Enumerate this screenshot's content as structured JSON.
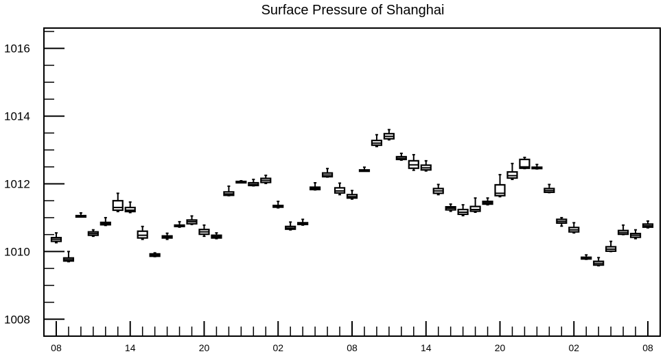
{
  "chart_data": {
    "type": "box",
    "title": "Surface Pressure of Shanghai",
    "xlabel": "",
    "ylabel": "",
    "ylim": [
      1007.5,
      1016.6
    ],
    "y_major_ticks": [
      1008,
      1010,
      1012,
      1014,
      1016
    ],
    "y_tick_labels": [
      "1008",
      "1010",
      "1012",
      "1014",
      "1016"
    ],
    "x_tick_hours": [
      0,
      6,
      12,
      18,
      24,
      30,
      36,
      42,
      48
    ],
    "x_tick_labels": [
      "08",
      "14",
      "20",
      "02",
      "08",
      "14",
      "20",
      "02",
      "08"
    ],
    "x_range_hours": [
      -1,
      49
    ],
    "series": [
      {
        "boxes": [
          {
            "hour": 0,
            "min": 1010.26,
            "q1": 1010.3,
            "median": 1010.36,
            "q3": 1010.41,
            "max": 1010.55
          },
          {
            "hour": 1,
            "min": 1009.7,
            "q1": 1009.72,
            "median": 1009.76,
            "q3": 1009.81,
            "max": 1010.0
          },
          {
            "hour": 2,
            "min": 1011.03,
            "q1": 1011.03,
            "median": 1011.04,
            "q3": 1011.06,
            "max": 1011.14
          },
          {
            "hour": 3,
            "min": 1010.45,
            "q1": 1010.48,
            "median": 1010.53,
            "q3": 1010.58,
            "max": 1010.64
          },
          {
            "hour": 4,
            "min": 1010.77,
            "q1": 1010.79,
            "median": 1010.82,
            "q3": 1010.86,
            "max": 1011.0
          },
          {
            "hour": 5,
            "min": 1011.18,
            "q1": 1011.22,
            "median": 1011.3,
            "q3": 1011.5,
            "max": 1011.72
          },
          {
            "hour": 6,
            "min": 1011.15,
            "q1": 1011.18,
            "median": 1011.22,
            "q3": 1011.3,
            "max": 1011.46
          },
          {
            "hour": 7,
            "min": 1010.36,
            "q1": 1010.4,
            "median": 1010.48,
            "q3": 1010.6,
            "max": 1010.74
          },
          {
            "hour": 8,
            "min": 1009.85,
            "q1": 1009.86,
            "median": 1009.89,
            "q3": 1009.93,
            "max": 1009.96
          },
          {
            "hour": 9,
            "min": 1010.36,
            "q1": 1010.4,
            "median": 1010.43,
            "q3": 1010.46,
            "max": 1010.54
          },
          {
            "hour": 10,
            "min": 1010.72,
            "q1": 1010.74,
            "median": 1010.76,
            "q3": 1010.78,
            "max": 1010.88
          },
          {
            "hour": 11,
            "min": 1010.8,
            "q1": 1010.82,
            "median": 1010.88,
            "q3": 1010.93,
            "max": 1011.05
          },
          {
            "hour": 12,
            "min": 1010.45,
            "q1": 1010.51,
            "median": 1010.58,
            "q3": 1010.65,
            "max": 1010.78
          },
          {
            "hour": 13,
            "min": 1010.38,
            "q1": 1010.4,
            "median": 1010.44,
            "q3": 1010.48,
            "max": 1010.55
          },
          {
            "hour": 14,
            "min": 1011.65,
            "q1": 1011.66,
            "median": 1011.7,
            "q3": 1011.76,
            "max": 1011.93
          },
          {
            "hour": 15,
            "min": 1012.04,
            "q1": 1012.05,
            "median": 1012.06,
            "q3": 1012.07,
            "max": 1012.09
          },
          {
            "hour": 16,
            "min": 1011.94,
            "q1": 1011.95,
            "median": 1011.98,
            "q3": 1012.03,
            "max": 1012.13
          },
          {
            "hour": 17,
            "min": 1012.01,
            "q1": 1012.04,
            "median": 1012.1,
            "q3": 1012.16,
            "max": 1012.25
          },
          {
            "hour": 18,
            "min": 1011.29,
            "q1": 1011.31,
            "median": 1011.33,
            "q3": 1011.36,
            "max": 1011.48
          },
          {
            "hour": 19,
            "min": 1010.64,
            "q1": 1010.66,
            "median": 1010.69,
            "q3": 1010.74,
            "max": 1010.87
          },
          {
            "hour": 20,
            "min": 1010.78,
            "q1": 1010.8,
            "median": 1010.83,
            "q3": 1010.85,
            "max": 1010.95
          },
          {
            "hour": 21,
            "min": 1011.82,
            "q1": 1011.83,
            "median": 1011.86,
            "q3": 1011.9,
            "max": 1012.03
          },
          {
            "hour": 22,
            "min": 1012.2,
            "q1": 1012.21,
            "median": 1012.26,
            "q3": 1012.32,
            "max": 1012.45
          },
          {
            "hour": 23,
            "min": 1011.68,
            "q1": 1011.73,
            "median": 1011.79,
            "q3": 1011.88,
            "max": 1012.02
          },
          {
            "hour": 24,
            "min": 1011.55,
            "q1": 1011.58,
            "median": 1011.62,
            "q3": 1011.68,
            "max": 1011.8
          },
          {
            "hour": 25,
            "min": 1012.38,
            "q1": 1012.39,
            "median": 1012.4,
            "q3": 1012.41,
            "max": 1012.49
          },
          {
            "hour": 26,
            "min": 1013.1,
            "q1": 1013.14,
            "median": 1013.2,
            "q3": 1013.28,
            "max": 1013.45
          },
          {
            "hour": 27,
            "min": 1013.3,
            "q1": 1013.33,
            "median": 1013.4,
            "q3": 1013.48,
            "max": 1013.6
          },
          {
            "hour": 28,
            "min": 1012.7,
            "q1": 1012.72,
            "median": 1012.75,
            "q3": 1012.8,
            "max": 1012.9
          },
          {
            "hour": 29,
            "min": 1012.4,
            "q1": 1012.46,
            "median": 1012.56,
            "q3": 1012.68,
            "max": 1012.86
          },
          {
            "hour": 30,
            "min": 1012.38,
            "q1": 1012.41,
            "median": 1012.47,
            "q3": 1012.55,
            "max": 1012.68
          },
          {
            "hour": 31,
            "min": 1011.68,
            "q1": 1011.72,
            "median": 1011.79,
            "q3": 1011.86,
            "max": 1011.98
          },
          {
            "hour": 32,
            "min": 1011.19,
            "q1": 1011.23,
            "median": 1011.28,
            "q3": 1011.32,
            "max": 1011.4
          },
          {
            "hour": 33,
            "min": 1011.06,
            "q1": 1011.1,
            "median": 1011.16,
            "q3": 1011.24,
            "max": 1011.38
          },
          {
            "hour": 34,
            "min": 1011.16,
            "q1": 1011.19,
            "median": 1011.24,
            "q3": 1011.33,
            "max": 1011.58
          },
          {
            "hour": 35,
            "min": 1011.38,
            "q1": 1011.4,
            "median": 1011.44,
            "q3": 1011.48,
            "max": 1011.58
          },
          {
            "hour": 36,
            "min": 1011.62,
            "q1": 1011.65,
            "median": 1011.72,
            "q3": 1011.97,
            "max": 1012.27
          },
          {
            "hour": 37,
            "min": 1012.13,
            "q1": 1012.17,
            "median": 1012.24,
            "q3": 1012.35,
            "max": 1012.6
          },
          {
            "hour": 38,
            "min": 1012.45,
            "q1": 1012.46,
            "median": 1012.5,
            "q3": 1012.72,
            "max": 1012.78
          },
          {
            "hour": 39,
            "min": 1012.44,
            "q1": 1012.45,
            "median": 1012.47,
            "q3": 1012.49,
            "max": 1012.57
          },
          {
            "hour": 40,
            "min": 1011.74,
            "q1": 1011.75,
            "median": 1011.8,
            "q3": 1011.86,
            "max": 1011.98
          },
          {
            "hour": 41,
            "min": 1010.75,
            "q1": 1010.84,
            "median": 1010.89,
            "q3": 1010.95,
            "max": 1011.0
          },
          {
            "hour": 42,
            "min": 1010.55,
            "q1": 1010.58,
            "median": 1010.64,
            "q3": 1010.71,
            "max": 1010.85
          },
          {
            "hour": 43,
            "min": 1009.77,
            "q1": 1009.78,
            "median": 1009.8,
            "q3": 1009.83,
            "max": 1009.9
          },
          {
            "hour": 44,
            "min": 1009.58,
            "q1": 1009.6,
            "median": 1009.65,
            "q3": 1009.71,
            "max": 1009.82
          },
          {
            "hour": 45,
            "min": 1010.0,
            "q1": 1010.01,
            "median": 1010.07,
            "q3": 1010.14,
            "max": 1010.3
          },
          {
            "hour": 46,
            "min": 1010.5,
            "q1": 1010.51,
            "median": 1010.56,
            "q3": 1010.62,
            "max": 1010.78
          },
          {
            "hour": 47,
            "min": 1010.38,
            "q1": 1010.42,
            "median": 1010.48,
            "q3": 1010.53,
            "max": 1010.64
          },
          {
            "hour": 48,
            "min": 1010.7,
            "q1": 1010.72,
            "median": 1010.76,
            "q3": 1010.81,
            "max": 1010.9
          }
        ]
      }
    ],
    "grid": false,
    "colors": {
      "box": "#000000",
      "background": "#ffffff"
    }
  }
}
